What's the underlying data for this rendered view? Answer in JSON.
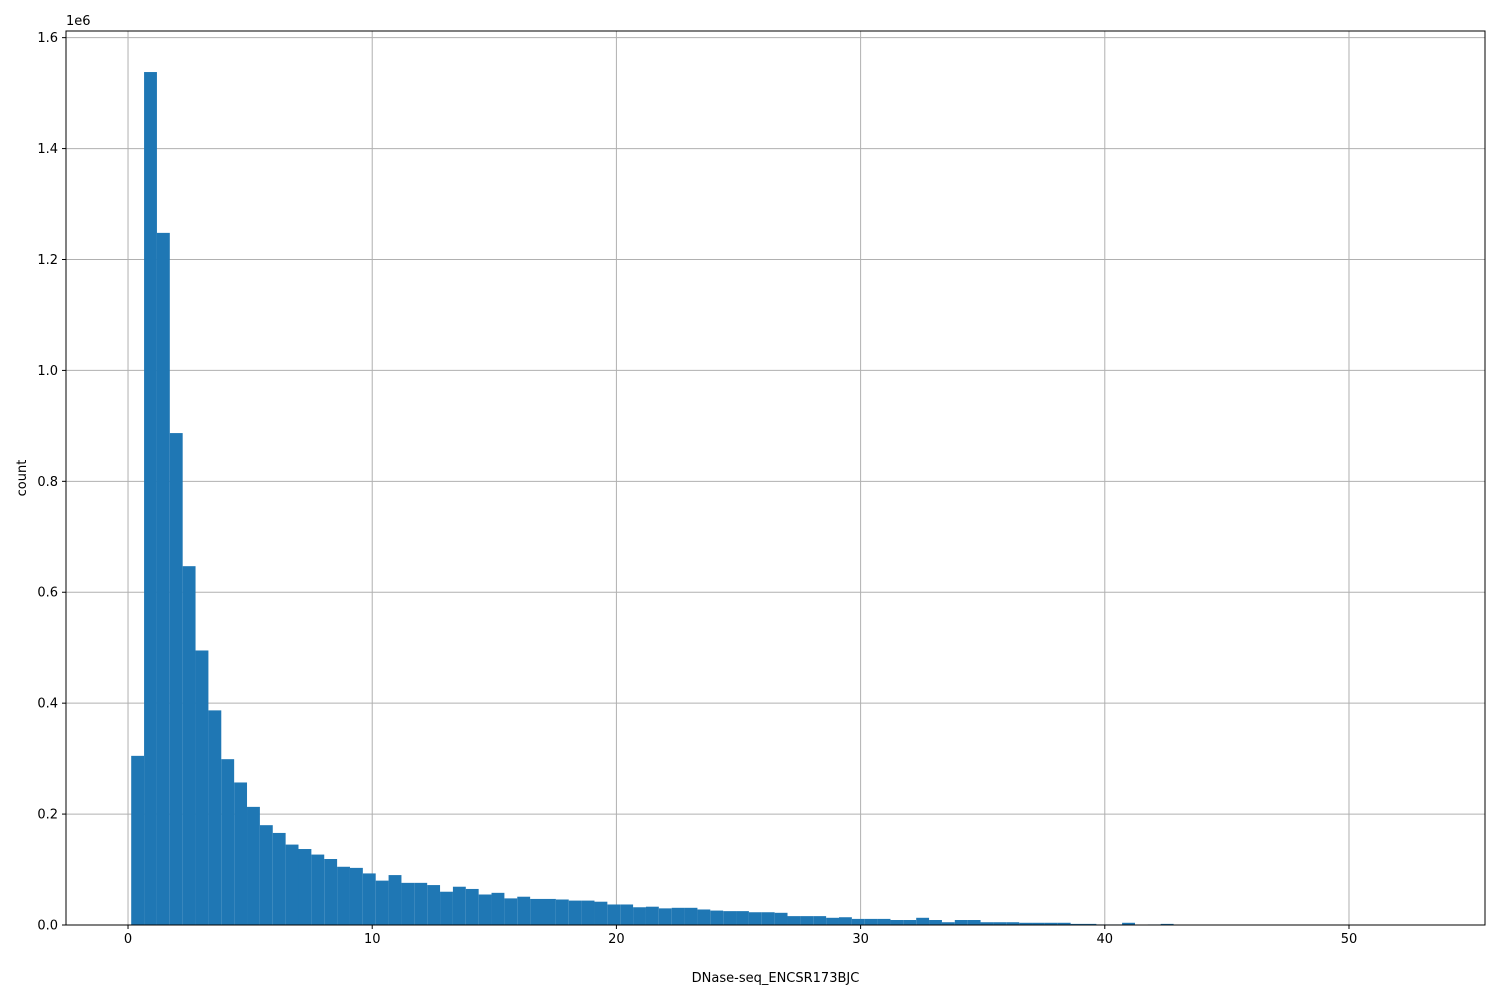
{
  "chart_data": {
    "type": "bar",
    "subtype": "histogram",
    "title": "",
    "xlabel": "DNase-seq_ENCSR173BJC",
    "ylabel": "count",
    "y_offset_label": "1e6",
    "xlim": [
      -2.54,
      55.57
    ],
    "ylim": [
      0,
      1612000
    ],
    "xticks": [
      0,
      10,
      20,
      30,
      40,
      50
    ],
    "xtick_labels": [
      "0",
      "10",
      "20",
      "30",
      "40",
      "50"
    ],
    "yticks": [
      0,
      200000,
      400000,
      600000,
      800000,
      1000000,
      1200000,
      1400000,
      1600000
    ],
    "ytick_labels": [
      "0.0",
      "0.2",
      "0.4",
      "0.6",
      "0.8",
      "1.0",
      "1.2",
      "1.4",
      "1.6"
    ],
    "grid": true,
    "bar_color": "#1f77b4",
    "grid_color": "#b0b0b0",
    "bin_start": 0.13,
    "bin_width": 0.527,
    "counts": [
      305000,
      1538000,
      1248000,
      887000,
      647000,
      495000,
      387000,
      299000,
      257000,
      213000,
      180000,
      166000,
      145000,
      137000,
      127000,
      119000,
      105000,
      103000,
      93000,
      80000,
      90000,
      76000,
      76000,
      72000,
      60000,
      69000,
      65000,
      55000,
      58000,
      48000,
      51000,
      47000,
      47000,
      46000,
      44000,
      44000,
      42000,
      37000,
      37000,
      32000,
      33000,
      30000,
      31000,
      31000,
      28000,
      26000,
      25000,
      25000,
      23000,
      23000,
      22000,
      16000,
      16000,
      16000,
      13000,
      14000,
      11000,
      11000,
      11000,
      9000,
      9000,
      13000,
      9000,
      5000,
      9000,
      9000,
      5000,
      5000,
      5000,
      4000,
      4000,
      4000,
      4000,
      2000,
      2000,
      1000,
      1000,
      4000,
      500,
      1000,
      2000,
      500,
      0,
      0,
      0,
      0,
      0,
      0,
      0,
      0,
      0,
      0,
      0,
      0,
      0,
      0,
      0,
      0,
      0,
      0
    ]
  }
}
